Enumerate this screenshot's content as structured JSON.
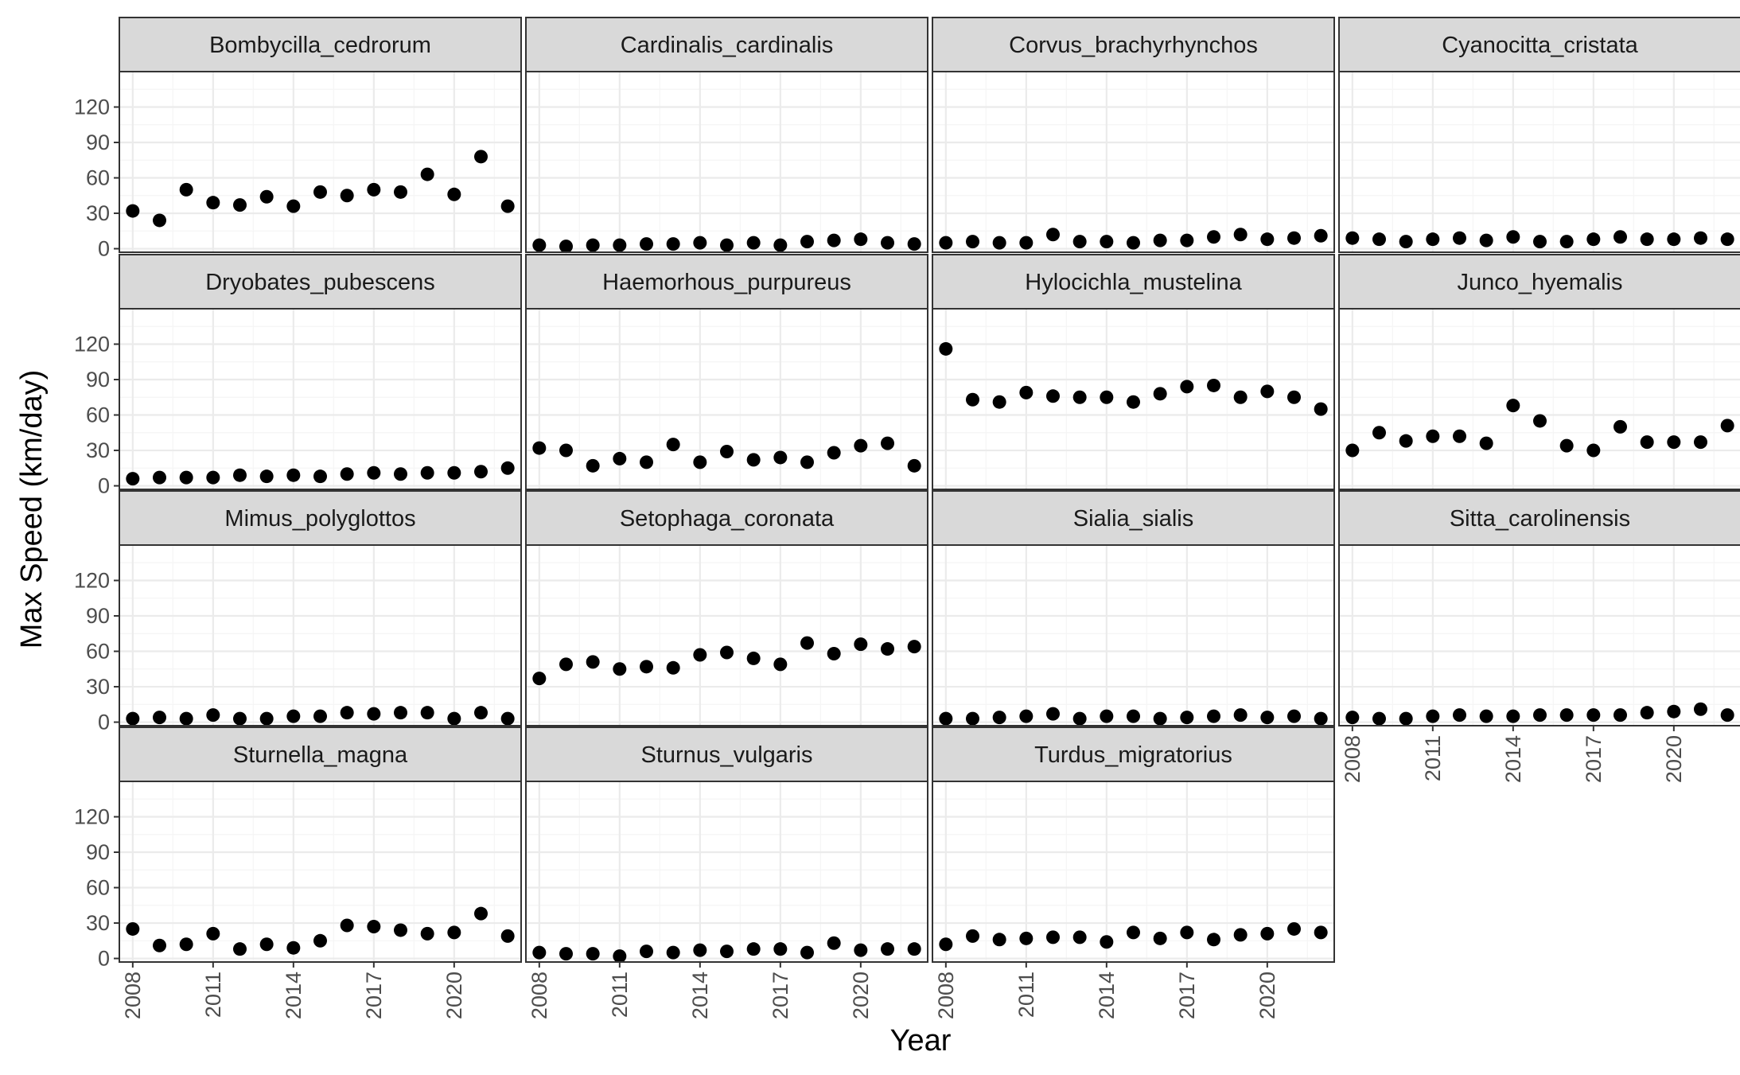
{
  "chart_data": {
    "type": "scatter",
    "layout": "facet grid, 4 columns",
    "xlabel": "Year",
    "ylabel": "Max Speed (km/day)",
    "xlim": [
      2007.5,
      2022.5
    ],
    "ylim": [
      -3,
      150
    ],
    "x_ticks": [
      2008,
      2011,
      2014,
      2017,
      2020
    ],
    "y_ticks": [
      0,
      30,
      60,
      90,
      120
    ],
    "grid": true,
    "years": [
      2008,
      2009,
      2010,
      2011,
      2012,
      2013,
      2014,
      2015,
      2016,
      2017,
      2018,
      2019,
      2020,
      2021,
      2022
    ],
    "colors": {
      "point": "#000000",
      "strip_fill": "#d9d9d9",
      "panel_border": "#333333",
      "grid_major": "#ebebeb",
      "grid_minor": "#f5f5f5",
      "tick_text": "#4d4d4d"
    },
    "facets": [
      {
        "name": "Bombycilla_cedrorum",
        "values": [
          32,
          24,
          50,
          39,
          37,
          44,
          36,
          48,
          45,
          50,
          48,
          63,
          46,
          78,
          36
        ]
      },
      {
        "name": "Cardinalis_cardinalis",
        "values": [
          3,
          2,
          3,
          3,
          4,
          4,
          5,
          3,
          5,
          3,
          6,
          7,
          8,
          5,
          4
        ]
      },
      {
        "name": "Corvus_brachyrhynchos",
        "values": [
          5,
          6,
          5,
          5,
          12,
          6,
          6,
          5,
          7,
          7,
          10,
          12,
          8,
          9,
          11
        ]
      },
      {
        "name": "Cyanocitta_cristata",
        "values": [
          9,
          8,
          6,
          8,
          9,
          7,
          10,
          6,
          6,
          8,
          10,
          8,
          8,
          9,
          8
        ]
      },
      {
        "name": "Dryobates_pubescens",
        "values": [
          6,
          7,
          7,
          7,
          9,
          8,
          9,
          8,
          10,
          11,
          10,
          11,
          11,
          12,
          15
        ]
      },
      {
        "name": "Haemorhous_purpureus",
        "values": [
          32,
          30,
          17,
          23,
          20,
          35,
          20,
          29,
          22,
          24,
          20,
          28,
          34,
          36,
          17
        ]
      },
      {
        "name": "Hylocichla_mustelina",
        "values": [
          116,
          73,
          71,
          79,
          76,
          75,
          75,
          71,
          78,
          84,
          85,
          75,
          80,
          75,
          65
        ]
      },
      {
        "name": "Junco_hyemalis",
        "values": [
          30,
          45,
          38,
          42,
          42,
          36,
          68,
          55,
          34,
          30,
          50,
          37,
          37,
          37,
          51
        ]
      },
      {
        "name": "Mimus_polyglottos",
        "values": [
          3,
          4,
          3,
          6,
          3,
          3,
          5,
          5,
          8,
          7,
          8,
          8,
          3,
          8,
          3
        ]
      },
      {
        "name": "Setophaga_coronata",
        "values": [
          37,
          49,
          51,
          45,
          47,
          46,
          57,
          59,
          54,
          49,
          67,
          58,
          66,
          62,
          64
        ]
      },
      {
        "name": "Sialia_sialis",
        "values": [
          3,
          3,
          4,
          5,
          7,
          3,
          5,
          5,
          3,
          4,
          5,
          6,
          4,
          5,
          3
        ]
      },
      {
        "name": "Sitta_carolinensis",
        "values": [
          4,
          3,
          3,
          5,
          6,
          5,
          5,
          6,
          6,
          6,
          6,
          8,
          9,
          11,
          6
        ]
      },
      {
        "name": "Sturnella_magna",
        "values": [
          25,
          11,
          12,
          21,
          8,
          12,
          9,
          15,
          28,
          27,
          24,
          21,
          22,
          38,
          19
        ]
      },
      {
        "name": "Sturnus_vulgaris",
        "values": [
          5,
          4,
          4,
          2,
          6,
          5,
          7,
          6,
          8,
          8,
          5,
          13,
          7,
          8,
          8
        ]
      },
      {
        "name": "Turdus_migratorius",
        "values": [
          12,
          19,
          16,
          17,
          18,
          18,
          14,
          22,
          17,
          22,
          16,
          20,
          21,
          25,
          22
        ]
      }
    ]
  }
}
